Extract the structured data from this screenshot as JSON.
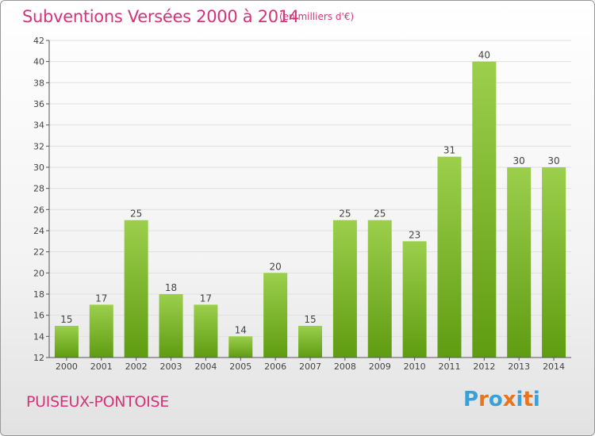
{
  "header": {
    "title": "Subventions Versées 2000 à 2014",
    "unit_note": "(en milliers d'€)"
  },
  "footer": {
    "commune": "PUISEUX-PONTOISE",
    "logo_text": "Proxiti"
  },
  "colors": {
    "accent": "#d4337a",
    "bar_light": "#9ccf4c",
    "bar_dark": "#5f9c12",
    "grid": "#e0e0e0",
    "axis": "#555555",
    "logo_letters": [
      "#3aa0d8",
      "#e8741c",
      "#3aa0d8",
      "#e8741c",
      "#3aa0d8",
      "#e8741c",
      "#3aa0d8"
    ]
  },
  "chart_data": {
    "type": "bar",
    "title": "Subventions Versées 2000 à 2014",
    "xlabel": "",
    "ylabel": "",
    "categories": [
      "2000",
      "2001",
      "2002",
      "2003",
      "2004",
      "2005",
      "2006",
      "2007",
      "2008",
      "2009",
      "2010",
      "2011",
      "2012",
      "2013",
      "2014"
    ],
    "values": [
      15,
      17,
      25,
      18,
      17,
      14,
      20,
      15,
      25,
      25,
      23,
      31,
      40,
      30,
      30
    ],
    "ylim": [
      12,
      42
    ],
    "yticks": [
      12,
      14,
      16,
      18,
      20,
      22,
      24,
      26,
      28,
      30,
      32,
      34,
      36,
      38,
      40,
      42
    ],
    "grid": true,
    "data_labels": true
  }
}
